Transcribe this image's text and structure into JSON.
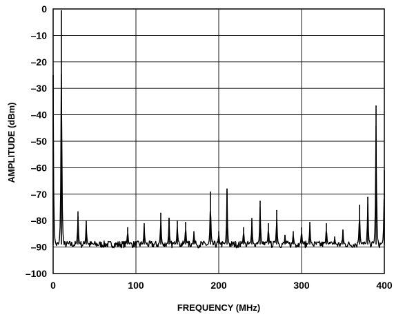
{
  "chart_data": {
    "type": "line",
    "title": "",
    "xlabel": "FREQUENCY (MHz)",
    "ylabel": "AMPLITUDE (dBm)",
    "xlim": [
      0,
      400
    ],
    "ylim": [
      -100,
      0
    ],
    "xticks": [
      0,
      100,
      200,
      300,
      400
    ],
    "yticks": [
      0,
      -10,
      -20,
      -30,
      -40,
      -50,
      -60,
      -70,
      -80,
      -90,
      -100
    ],
    "grid": true,
    "legend": "none",
    "line_color": "#000000",
    "noise_floor_dBm": -89,
    "peaks": [
      {
        "x": 0,
        "y": -25
      },
      {
        "x": 10,
        "y": -0.5
      },
      {
        "x": 30,
        "y": -76.5
      },
      {
        "x": 40,
        "y": -80
      },
      {
        "x": 90,
        "y": -82.5
      },
      {
        "x": 110,
        "y": -81
      },
      {
        "x": 130,
        "y": -77
      },
      {
        "x": 140,
        "y": -79
      },
      {
        "x": 150,
        "y": -80
      },
      {
        "x": 160,
        "y": -80.5
      },
      {
        "x": 170,
        "y": -84
      },
      {
        "x": 190,
        "y": -69
      },
      {
        "x": 200,
        "y": -84
      },
      {
        "x": 210,
        "y": -68
      },
      {
        "x": 230,
        "y": -82.5
      },
      {
        "x": 240,
        "y": -79
      },
      {
        "x": 250,
        "y": -72.5
      },
      {
        "x": 260,
        "y": -81
      },
      {
        "x": 270,
        "y": -76
      },
      {
        "x": 280,
        "y": -85.5
      },
      {
        "x": 290,
        "y": -84
      },
      {
        "x": 300,
        "y": -82.5
      },
      {
        "x": 310,
        "y": -80.5
      },
      {
        "x": 330,
        "y": -81
      },
      {
        "x": 340,
        "y": -86
      },
      {
        "x": 350,
        "y": -83.5
      },
      {
        "x": 370,
        "y": -74
      },
      {
        "x": 380,
        "y": -71
      },
      {
        "x": 390,
        "y": -36.5
      },
      {
        "x": 400,
        "y": -61
      }
    ]
  }
}
